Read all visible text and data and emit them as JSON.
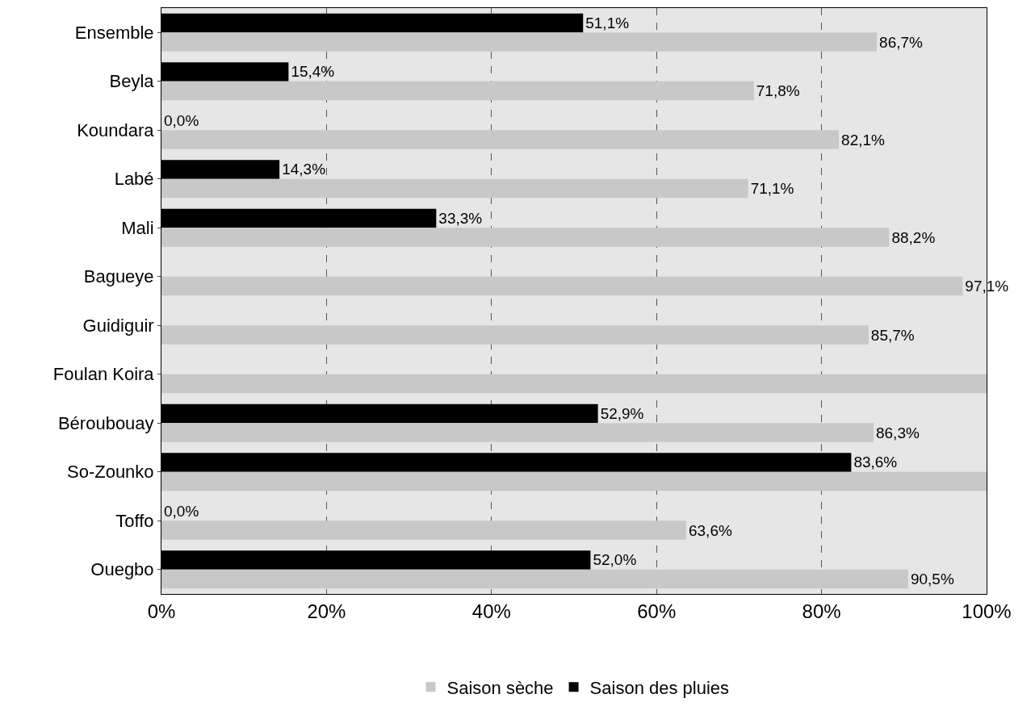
{
  "chart_data": {
    "type": "bar",
    "orientation": "horizontal",
    "categories": [
      "Ensemble",
      "Beyla",
      "Koundara",
      "Labé",
      "Mali",
      "Bagueye",
      "Guidiguir",
      "Foulan Koira",
      "Béroubouay",
      "So-Zounko",
      "Toffo",
      "Ouegbo"
    ],
    "series": [
      {
        "name": "Saison des pluies",
        "color": "#000000",
        "values": [
          51.1,
          15.4,
          0.0,
          14.3,
          33.3,
          null,
          null,
          null,
          52.9,
          83.6,
          0.0,
          52.0
        ],
        "value_labels": [
          "51,1%",
          "15,4%",
          "0,0%",
          "14,3%",
          "33,3%",
          null,
          null,
          null,
          "52,9%",
          "83,6%",
          "0,0%",
          "52,0%"
        ]
      },
      {
        "name": "Saison sèche",
        "color": "#c8c8c8",
        "values": [
          86.7,
          71.8,
          82.1,
          71.1,
          88.2,
          97.1,
          85.7,
          100,
          86.3,
          100,
          63.6,
          90.5
        ],
        "value_labels": [
          "86,7%",
          "71,8%",
          "82,1%",
          "71,1%",
          "88,2%",
          "97,1%",
          "85,7%",
          null,
          "86,3%",
          null,
          "63,6%",
          "90,5%"
        ]
      }
    ],
    "xlim": [
      0,
      100
    ],
    "xticks": [
      {
        "value": 0,
        "label": "0%"
      },
      {
        "value": 20,
        "label": "20%"
      },
      {
        "value": 40,
        "label": "40%"
      },
      {
        "value": 60,
        "label": "60%"
      },
      {
        "value": 80,
        "label": "80%"
      },
      {
        "value": 100,
        "label": "100%"
      }
    ],
    "grid": "x",
    "legend": "bottom"
  }
}
